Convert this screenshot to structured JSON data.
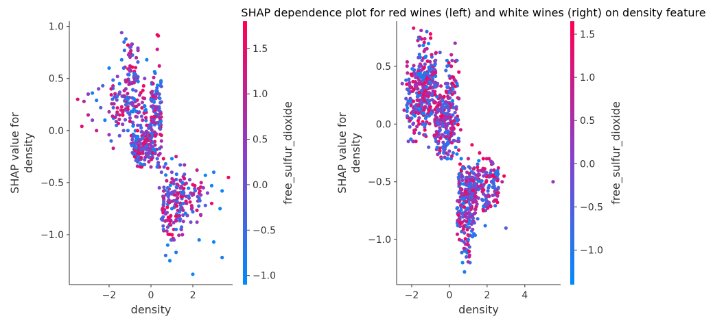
{
  "title": "SHAP dependence plot for red wines (left) and white wines (right) on density feature",
  "colors": {
    "low": "#008bfb",
    "mid": "#8a3fc8",
    "high": "#ff0052",
    "axis": "#333333"
  },
  "chart_data": [
    {
      "type": "scatter",
      "name": "red",
      "xlabel": "density",
      "ylabel_lines": [
        "SHAP value for",
        "density"
      ],
      "xlim": [
        -3.9,
        3.9
      ],
      "ylim": [
        -1.48,
        1.05
      ],
      "xticks": [
        -2,
        0,
        2
      ],
      "xtick_labels": [
        "−2",
        "0",
        "2"
      ],
      "yticks": [
        1.0,
        0.5,
        0.0,
        -0.5,
        -1.0
      ],
      "ytick_labels": [
        "1.0",
        "0.5",
        "0.0",
        "−0.5",
        "−1.0"
      ],
      "colorbar": {
        "label": "free_sulfur_dioxide",
        "range": [
          -1.1,
          1.8
        ],
        "ticks": [
          1.5,
          1.0,
          0.5,
          0.0,
          -0.5,
          -1.0
        ],
        "tick_labels": [
          "1.5",
          "1.0",
          "0.5",
          "0.0",
          "−0.5",
          "−1.0"
        ]
      },
      "points": [
        [
          -1.4,
          0.94,
          0.2
        ],
        [
          -1.2,
          0.88,
          -0.6
        ],
        [
          0.3,
          0.92,
          1.8
        ],
        [
          0.35,
          0.91,
          1.6
        ],
        [
          -0.9,
          0.83,
          0.5
        ],
        [
          -1.0,
          0.8,
          -0.2
        ],
        [
          0.3,
          0.78,
          1.2
        ],
        [
          -1.4,
          0.68,
          -0.8
        ],
        [
          -0.7,
          0.7,
          0.8
        ],
        [
          -0.2,
          0.68,
          -0.9
        ],
        [
          0.4,
          0.62,
          1.3
        ],
        [
          -1.3,
          0.6,
          -0.5
        ],
        [
          -2.0,
          0.6,
          -1.0
        ],
        [
          -1.0,
          0.57,
          0.6
        ],
        [
          -0.8,
          0.55,
          -0.7
        ],
        [
          -1.6,
          0.52,
          0.4
        ],
        [
          -1.5,
          0.45,
          -1.0
        ],
        [
          -1.0,
          0.45,
          0.9
        ],
        [
          -0.7,
          0.48,
          -0.4
        ],
        [
          -0.3,
          0.5,
          0.3
        ],
        [
          -2.3,
          0.43,
          -0.3
        ],
        [
          -2.5,
          0.4,
          0.2
        ],
        [
          -1.9,
          0.4,
          1.4
        ],
        [
          -2.8,
          0.36,
          -1.0
        ],
        [
          -3.0,
          0.35,
          0.4
        ],
        [
          -3.5,
          0.3,
          1.4
        ],
        [
          -3.2,
          0.28,
          0.9
        ],
        [
          -2.6,
          0.29,
          -0.8
        ],
        [
          -1.7,
          0.32,
          0.0
        ],
        [
          -1.2,
          0.3,
          -0.6
        ],
        [
          -2.4,
          0.22,
          -0.2
        ],
        [
          -3.0,
          0.15,
          1.0
        ],
        [
          -3.3,
          0.04,
          1.5
        ],
        [
          -2.8,
          0.1,
          0.3
        ],
        [
          -2.2,
          0.1,
          -0.9
        ],
        [
          -2.0,
          0.18,
          0.6
        ],
        [
          -1.8,
          0.22,
          -0.4
        ],
        [
          -2.6,
          0.0,
          1.1
        ],
        [
          -2.0,
          -0.04,
          0.5
        ],
        [
          -1.9,
          -0.1,
          -0.5
        ],
        [
          -1.8,
          -0.17,
          1.1
        ],
        [
          -1.5,
          -0.05,
          0.0
        ],
        [
          -1.5,
          0.15,
          1.2
        ],
        [
          -1.0,
          0.12,
          0.2
        ],
        [
          -1.1,
          0.3,
          -0.8
        ],
        [
          -0.9,
          0.25,
          0.4
        ],
        [
          -0.5,
          0.05,
          -0.2
        ],
        [
          -0.4,
          -0.2,
          0.9
        ],
        [
          -0.6,
          -0.25,
          -0.7
        ],
        [
          -0.3,
          -0.28,
          0.1
        ],
        [
          -0.1,
          -0.3,
          1.0
        ],
        [
          0.1,
          -0.18,
          -1.0
        ],
        [
          0.2,
          -0.22,
          0.5
        ],
        [
          0.3,
          -0.27,
          -0.4
        ],
        [
          -0.2,
          -0.15,
          -0.5
        ],
        [
          0.0,
          -0.35,
          0.6
        ],
        [
          -0.5,
          -0.32,
          -1.0
        ],
        [
          -0.2,
          -0.08,
          1.4
        ],
        [
          -0.8,
          -0.05,
          -0.3
        ],
        [
          -0.4,
          0.1,
          0.8
        ],
        [
          0.0,
          0.3,
          -0.9
        ],
        [
          0.1,
          0.45,
          1.1
        ],
        [
          0.2,
          0.55,
          -0.6
        ],
        [
          0.3,
          0.2,
          0.3
        ],
        [
          0.4,
          0.05,
          -0.9
        ],
        [
          0.5,
          -0.1,
          0.7
        ],
        [
          0.4,
          0.35,
          -0.2
        ],
        [
          0.2,
          -0.05,
          1.6
        ],
        [
          -1.2,
          0.4,
          0.5
        ],
        [
          -1.1,
          0.0,
          -0.8
        ],
        [
          0.6,
          -0.27,
          1.6
        ],
        [
          1.2,
          -0.25,
          1.2
        ],
        [
          1.0,
          -0.27,
          -1.0
        ],
        [
          0.5,
          -0.4,
          0.0
        ],
        [
          1.4,
          -0.33,
          -0.3
        ],
        [
          1.6,
          -0.33,
          0.6
        ],
        [
          2.2,
          -0.38,
          1.0
        ],
        [
          2.6,
          -0.43,
          -1.0
        ],
        [
          3.0,
          -0.4,
          -0.8
        ],
        [
          3.7,
          -0.45,
          1.7
        ],
        [
          3.4,
          -0.58,
          -1.0
        ],
        [
          2.4,
          -0.5,
          1.1
        ],
        [
          2.9,
          -0.53,
          -0.9
        ],
        [
          2.7,
          -0.6,
          0.3
        ],
        [
          2.0,
          -0.52,
          1.5
        ],
        [
          2.3,
          -0.65,
          -0.5
        ],
        [
          1.7,
          -0.7,
          0.9
        ],
        [
          2.0,
          -0.78,
          -0.6
        ],
        [
          2.6,
          -0.72,
          -0.2
        ],
        [
          2.9,
          -0.7,
          1.5
        ],
        [
          3.3,
          -0.75,
          -1.0
        ],
        [
          2.2,
          -0.88,
          0.4
        ],
        [
          1.2,
          -0.95,
          -0.9
        ],
        [
          1.5,
          -1.0,
          0.7
        ],
        [
          2.3,
          -1.05,
          -0.8
        ],
        [
          3.0,
          -1.07,
          -1.0
        ],
        [
          3.4,
          -1.22,
          -0.8
        ],
        [
          2.0,
          -1.38,
          -1.0
        ],
        [
          1.2,
          -1.17,
          -0.8
        ],
        [
          0.7,
          -1.2,
          -0.6
        ],
        [
          0.8,
          -1.1,
          -1.0
        ],
        [
          1.1,
          -1.05,
          0.3
        ],
        [
          0.6,
          -0.95,
          -0.7
        ],
        [
          0.9,
          -0.9,
          1.1
        ],
        [
          1.4,
          -0.85,
          -0.3
        ],
        [
          0.7,
          -0.8,
          0.5
        ],
        [
          1.0,
          -0.75,
          -1.0
        ],
        [
          1.8,
          -0.63,
          -0.7
        ],
        [
          1.3,
          -0.6,
          1.4
        ],
        [
          0.8,
          -0.55,
          -0.4
        ],
        [
          1.1,
          -0.48,
          0.8
        ],
        [
          0.6,
          -0.65,
          1.2
        ],
        [
          1.5,
          -0.5,
          -0.9
        ],
        [
          2.5,
          -0.55,
          0.4
        ],
        [
          0.5,
          -0.85,
          -0.3
        ],
        [
          0.9,
          -1.25,
          -1.0
        ],
        [
          1.6,
          -0.42,
          -0.1
        ],
        [
          0.4,
          -0.55,
          0.2
        ],
        [
          0.7,
          -0.32,
          -0.8
        ],
        [
          1.9,
          -0.88,
          0.1
        ]
      ],
      "clusters": [
        {
          "x": [
            -1.9,
            -0.2
          ],
          "y": [
            0.0,
            0.5
          ],
          "n": 90
        },
        {
          "x": [
            -0.95,
            0.1
          ],
          "y": [
            -0.35,
            0.05
          ],
          "n": 150
        },
        {
          "x": [
            0.0,
            0.5
          ],
          "y": [
            -0.35,
            0.6
          ],
          "n": 110
        },
        {
          "x": [
            -1.3,
            -0.6
          ],
          "y": [
            0.3,
            0.85
          ],
          "n": 50
        },
        {
          "x": [
            0.5,
            1.6
          ],
          "y": [
            -1.05,
            -0.35
          ],
          "n": 130
        },
        {
          "x": [
            1.4,
            2.4
          ],
          "y": [
            -0.85,
            -0.45
          ],
          "n": 40
        }
      ]
    },
    {
      "type": "scatter",
      "name": "white",
      "xlabel": "density",
      "ylabel_lines": [
        "SHAP value for",
        "density"
      ],
      "xlim": [
        -2.8,
        5.9
      ],
      "ylim": [
        -1.39,
        0.89
      ],
      "xticks": [
        -2,
        0,
        2,
        4
      ],
      "xtick_labels": [
        "−2",
        "0",
        "2",
        "4"
      ],
      "yticks": [
        0.5,
        0.0,
        -0.5,
        -1.0
      ],
      "ytick_labels": [
        "0.5",
        "0.0",
        "−0.5",
        "−1.0"
      ],
      "colorbar": {
        "label": "free_sulfur_dioxide",
        "range": [
          -1.4,
          1.65
        ],
        "ticks": [
          1.5,
          1.0,
          0.5,
          0.0,
          -0.5,
          -1.0
        ],
        "tick_labels": [
          "1.5",
          "1.0",
          "0.5",
          "0.0",
          "−0.5",
          "−1.0"
        ]
      },
      "points": [
        [
          -1.9,
          0.83,
          1.2
        ],
        [
          -1.5,
          0.81,
          0.5
        ],
        [
          -1.2,
          0.8,
          -0.8
        ],
        [
          -1.0,
          0.78,
          1.4
        ],
        [
          0.3,
          0.7,
          0.5
        ],
        [
          -2.3,
          0.38,
          -0.9
        ],
        [
          -2.5,
          0.35,
          0.2
        ],
        [
          -2.2,
          0.3,
          1.2
        ],
        [
          -2.3,
          0.22,
          -0.3
        ],
        [
          -2.4,
          0.12,
          0.8
        ],
        [
          -2.0,
          0.05,
          -0.8
        ],
        [
          -1.8,
          -0.05,
          1.1
        ],
        [
          -1.9,
          -0.15,
          0.3
        ],
        [
          -1.6,
          -0.08,
          -0.6
        ],
        [
          -1.7,
          0.4,
          0.6
        ],
        [
          -1.6,
          0.5,
          -0.2
        ],
        [
          0.1,
          0.5,
          1.3
        ],
        [
          0.4,
          0.35,
          -1.0
        ],
        [
          0.5,
          0.22,
          0.6
        ],
        [
          0.3,
          0.1,
          -0.3
        ],
        [
          0.1,
          0.6,
          0.9
        ],
        [
          0.4,
          0.55,
          -0.6
        ],
        [
          0.5,
          0.45,
          1.5
        ],
        [
          0.5,
          -0.15,
          0.2
        ],
        [
          0.2,
          -0.25,
          -0.9
        ],
        [
          1.2,
          -0.18,
          1.5
        ],
        [
          1.6,
          -0.25,
          1.3
        ],
        [
          1.0,
          -0.3,
          0.9
        ],
        [
          2.1,
          -0.3,
          1.4
        ],
        [
          2.6,
          -0.38,
          1.1
        ],
        [
          2.9,
          -0.45,
          1.5
        ],
        [
          2.8,
          -0.5,
          0.8
        ],
        [
          2.6,
          -0.55,
          -0.4
        ],
        [
          2.5,
          -0.6,
          1.2
        ],
        [
          2.1,
          -0.68,
          0.0
        ],
        [
          1.8,
          -0.75,
          1.3
        ],
        [
          1.5,
          -0.82,
          -0.7
        ],
        [
          1.9,
          -0.88,
          -1.0
        ],
        [
          3.0,
          -0.9,
          -0.5
        ],
        [
          5.5,
          -0.5,
          0.3
        ],
        [
          1.0,
          -1.0,
          -1.2
        ],
        [
          0.8,
          -1.1,
          -1.0
        ],
        [
          0.7,
          -1.2,
          -1.3
        ],
        [
          0.8,
          -1.28,
          -1.1
        ],
        [
          0.9,
          -1.15,
          -0.6
        ],
        [
          1.3,
          -0.95,
          -0.9
        ],
        [
          -0.5,
          0.62,
          -0.3
        ],
        [
          -0.9,
          0.45,
          0.9
        ],
        [
          -2.2,
          0.3,
          -0.8
        ],
        [
          -0.8,
          -0.1,
          1.2
        ],
        [
          -0.3,
          -0.25,
          -0.9
        ],
        [
          0.6,
          -0.05,
          1.0
        ],
        [
          -1.1,
          -0.2,
          -0.4
        ],
        [
          -0.5,
          0.25,
          0.7
        ]
      ],
      "clusters": [
        {
          "x": [
            -2.3,
            -1.0
          ],
          "y": [
            -0.15,
            0.55
          ],
          "n": 160
        },
        {
          "x": [
            -1.7,
            -0.7
          ],
          "y": [
            0.0,
            0.75
          ],
          "n": 160
        },
        {
          "x": [
            -0.8,
            0.2
          ],
          "y": [
            -0.3,
            0.35
          ],
          "n": 170
        },
        {
          "x": [
            -0.2,
            0.5
          ],
          "y": [
            -0.3,
            0.55
          ],
          "n": 90
        },
        {
          "x": [
            0.5,
            2.6
          ],
          "y": [
            -0.75,
            -0.3
          ],
          "n": 230
        },
        {
          "x": [
            0.4,
            1.4
          ],
          "y": [
            -1.0,
            -0.45
          ],
          "n": 130
        },
        {
          "x": [
            0.6,
            1.1
          ],
          "y": [
            -1.2,
            -0.95
          ],
          "n": 20
        }
      ]
    }
  ]
}
